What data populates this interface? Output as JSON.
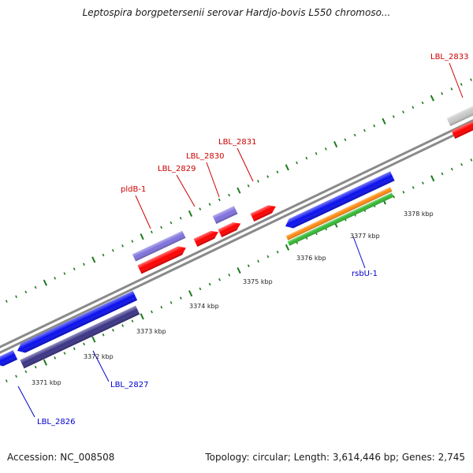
{
  "title": "Leptospira borgpetersenii serovar Hardjo-bovis L550 chromoso...",
  "footer": {
    "accession": "Accession: NC_008508",
    "stats": "Topology: circular; Length: 3,614,446 bp; Genes: 2,745"
  },
  "colors": {
    "backbone": "#8a8a8a",
    "tick_dash": "#1e7a1e",
    "label_forward": "#cc0000",
    "label_reverse": "#0000cc",
    "gene_red": "#ff0000",
    "gene_blue": "#0a10ee",
    "gene_lilac": "#7f72dd",
    "gene_navy": "#3b3486",
    "gene_grey": "#c8c8c8",
    "gene_orange": "#ff8a10",
    "gene_green": "#33bb33"
  },
  "gene_labels_forward": [
    "LBL_2833",
    "LBL_2831",
    "LBL_2830",
    "LBL_2829",
    "pldB-1"
  ],
  "gene_labels_reverse": [
    "rsbU-1",
    "LBL_2827",
    "LBL_2826"
  ],
  "tick_labels": [
    "3371 kbp",
    "3372 kbp",
    "3373 kbp",
    "3374 kbp",
    "3375 kbp",
    "3376 kbp",
    "3377 kbp",
    "3378 kbp"
  ]
}
